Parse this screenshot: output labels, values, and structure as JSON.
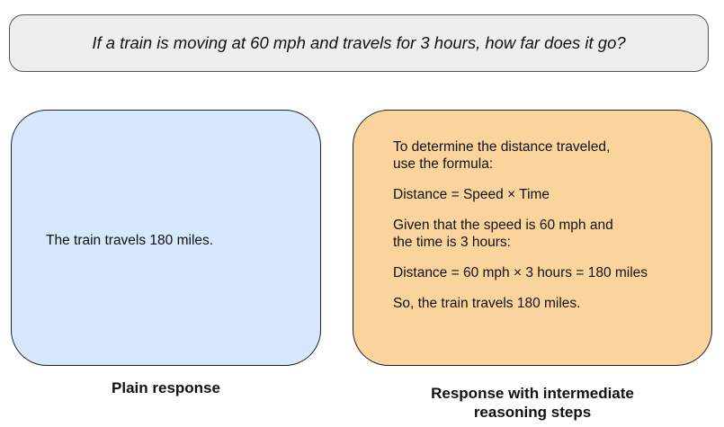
{
  "question": "If a train is moving at 60 mph and travels for 3 hours, how far does it go?",
  "plain_panel": {
    "response": "The train travels 180 miles.",
    "caption": "Plain response"
  },
  "steps_panel": {
    "steps": [
      "To determine the distance traveled,\nuse the formula:",
      "Distance = Speed × Time",
      "Given that the speed is 60 mph and\nthe time is 3 hours:",
      "Distance = 60 mph × 3 hours = 180 miles",
      "So, the train travels 180 miles."
    ],
    "caption": "Response with intermediate\nreasoning steps"
  },
  "colors": {
    "question_bg": "#eeeeee",
    "plain_bg": "#d6e8fc",
    "steps_bg": "#fbd49d"
  }
}
